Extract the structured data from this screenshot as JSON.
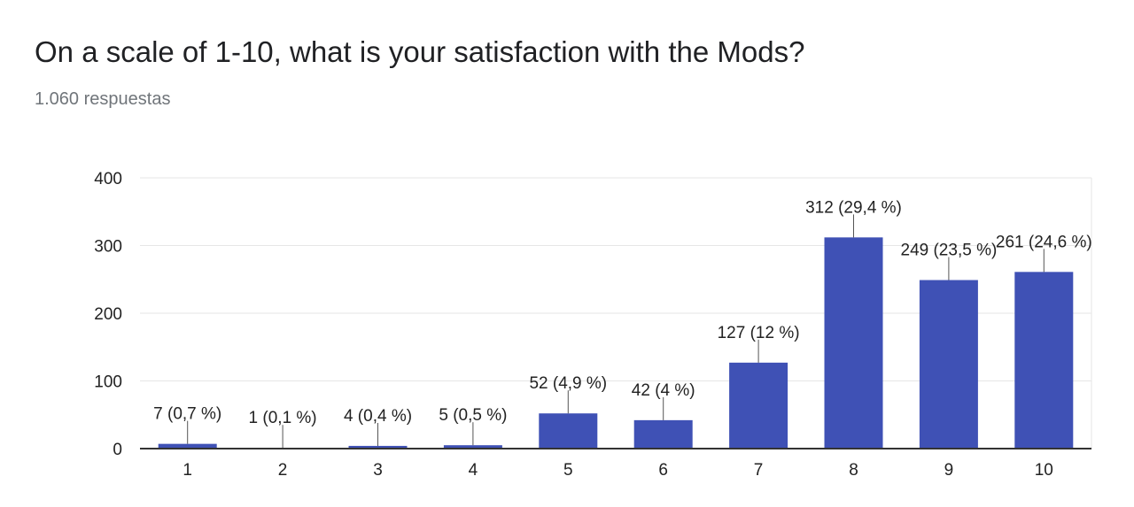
{
  "header": {
    "title": "On a scale of 1-10, what is your satisfaction with the Mods?",
    "response_count": "1.060 respuestas"
  },
  "colors": {
    "bar": "#3f51b5",
    "grid": "#e6e6e6",
    "axis": "#333333",
    "label": "#222222"
  },
  "chart_data": {
    "type": "bar",
    "categories": [
      "1",
      "2",
      "3",
      "4",
      "5",
      "6",
      "7",
      "8",
      "9",
      "10"
    ],
    "values": [
      7,
      1,
      4,
      5,
      52,
      42,
      127,
      312,
      249,
      261
    ],
    "data_labels": [
      "7 (0,7 %)",
      "1 (0,1 %)",
      "4 (0,4 %)",
      "5 (0,5 %)",
      "52 (4,9 %)",
      "42 (4 %)",
      "127 (12 %)",
      "312 (29,4 %)",
      "249 (23,5 %)",
      "261 (24,6 %)"
    ],
    "ylim": [
      0,
      400
    ],
    "yticks": [
      "0",
      "100",
      "200",
      "300",
      "400"
    ],
    "grid": true,
    "legend": "none"
  }
}
